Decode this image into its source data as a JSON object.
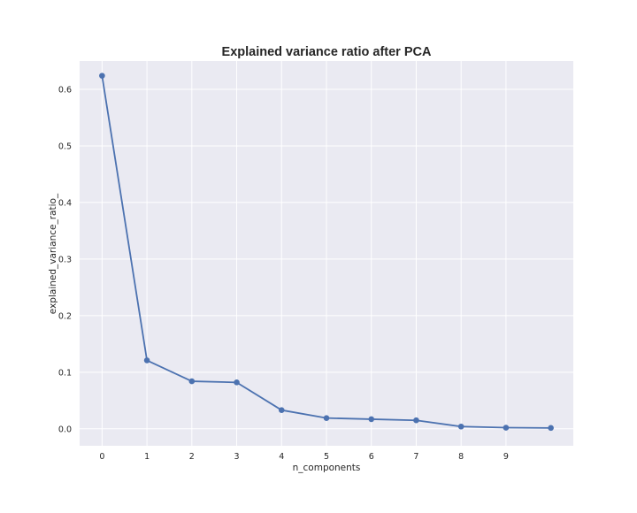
{
  "chart_data": {
    "type": "line",
    "title": "Explained variance ratio after PCA",
    "xlabel": "n_components",
    "ylabel": "explained_variance_ratio_",
    "x": [
      0,
      1,
      2,
      3,
      4,
      5,
      6,
      7,
      8,
      9,
      10
    ],
    "x_ticks": [
      "0",
      "1",
      "2",
      "3",
      "4",
      "5",
      "6",
      "7",
      "8",
      "9"
    ],
    "y_ticks": [
      "0.0",
      "0.1",
      "0.2",
      "0.3",
      "0.4",
      "0.5",
      "0.6"
    ],
    "xlim": [
      -0.5,
      10.5
    ],
    "ylim": [
      -0.03,
      0.65
    ],
    "grid": true,
    "series": [
      {
        "values": [
          0.624,
          0.121,
          0.084,
          0.082,
          0.033,
          0.019,
          0.017,
          0.015,
          0.004,
          0.002,
          0.0015
        ],
        "color": "#4c72b0",
        "marker": "circle"
      }
    ],
    "background_color": "#eaeaf2",
    "grid_color": "#ffffff"
  }
}
